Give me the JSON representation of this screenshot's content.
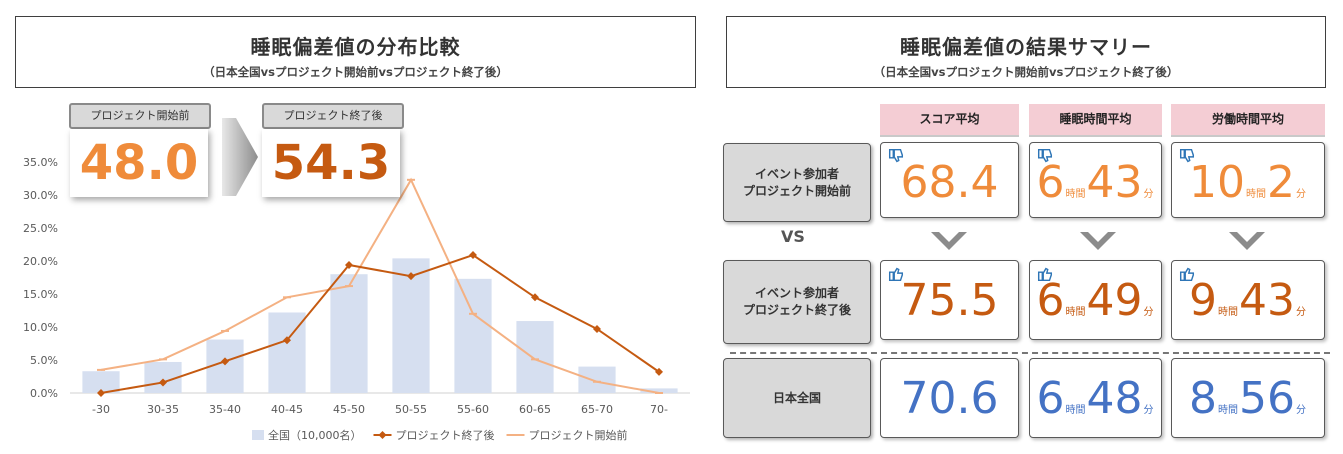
{
  "left_panel": {
    "title": "睡眠偏差値の分布比較",
    "subtitle": "（日本全国vsプロジェクト開始前vsプロジェクト終了後）",
    "callout_before": {
      "label": "プロジェクト開始前",
      "value": "48.0",
      "color": "#ef8b3a"
    },
    "callout_after": {
      "label": "プロジェクト終了後",
      "value": "54.3",
      "color": "#c55a11"
    }
  },
  "chart_data": {
    "type": "bar",
    "categories": [
      "-30",
      "30-35",
      "35-40",
      "40-45",
      "45-50",
      "50-55",
      "55-60",
      "60-65",
      "65-70",
      "70-"
    ],
    "y_tick_labels": [
      "0.0%",
      "5.0%",
      "10.0%",
      "15.0%",
      "20.0%",
      "25.0%",
      "30.0%",
      "35.0%"
    ],
    "ylim": [
      0,
      35
    ],
    "grid": false,
    "legend_position": "bottom",
    "series": [
      {
        "name": "全国（10,000名）",
        "type": "bar",
        "color": "#d6dff0",
        "values": [
          3.3,
          4.7,
          8.1,
          12.2,
          18.0,
          20.4,
          17.3,
          10.9,
          4.0,
          0.7
        ]
      },
      {
        "name": "プロジェクト終了後",
        "type": "line",
        "color": "#c55a11",
        "marker": "diamond",
        "values": [
          0.0,
          1.6,
          4.8,
          8.0,
          19.4,
          17.7,
          20.9,
          14.5,
          9.7,
          3.2
        ]
      },
      {
        "name": "プロジェクト開始前",
        "type": "line",
        "color": "#f4b183",
        "marker": "dash",
        "values": [
          3.5,
          5.1,
          9.4,
          14.5,
          16.2,
          32.3,
          12.0,
          5.1,
          1.7,
          0.0
        ]
      }
    ]
  },
  "right_panel": {
    "title": "睡眠偏差値の結果サマリー",
    "subtitle": "（日本全国vsプロジェクト開始前vsプロジェクト終了後）",
    "columns": [
      "スコア平均",
      "睡眠時間平均",
      "労働時間平均"
    ],
    "vs_label": "VS",
    "hour_unit": "時間",
    "minute_unit": "分",
    "rows": [
      {
        "label_line1": "イベント参加者",
        "label_line2": "プロジェクト開始前",
        "icon": "thumbs-down-icon",
        "color": "#ef8b3a",
        "score": "68.4",
        "sleep_h": "6",
        "sleep_m": "43",
        "work_h": "10",
        "work_m": "2"
      },
      {
        "label_line1": "イベント参加者",
        "label_line2": "プロジェクト終了後",
        "icon": "thumbs-up-icon",
        "color": "#c55a11",
        "score": "75.5",
        "sleep_h": "6",
        "sleep_m": "49",
        "work_h": "9",
        "work_m": "43"
      },
      {
        "label_line1": "日本全国",
        "label_line2": "",
        "icon": "",
        "color": "#4472c4",
        "score": "70.6",
        "sleep_h": "6",
        "sleep_m": "48",
        "work_h": "8",
        "work_m": "56"
      }
    ]
  }
}
